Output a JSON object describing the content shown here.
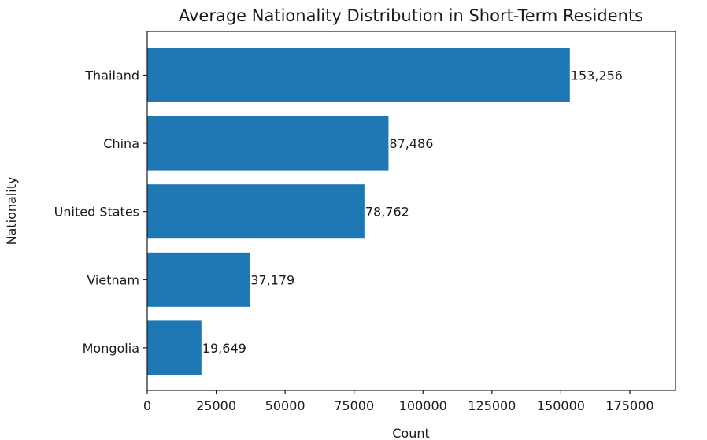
{
  "chart_data": {
    "type": "bar",
    "orientation": "horizontal",
    "title": "Average Nationality Distribution in Short-Term Residents",
    "xlabel": "Count",
    "ylabel": "Nationality",
    "categories": [
      "Thailand",
      "China",
      "United States",
      "Vietnam",
      "Mongolia"
    ],
    "values": [
      153256,
      87486,
      78762,
      37179,
      19649
    ],
    "data_labels": [
      "153,256",
      "87,486",
      "78,762",
      "37,179",
      "19,649"
    ],
    "xlim": [
      0,
      191570
    ],
    "xticks": [
      0,
      25000,
      50000,
      75000,
      100000,
      125000,
      150000,
      175000
    ],
    "xtick_labels": [
      "0",
      "25000",
      "50000",
      "75000",
      "100000",
      "125000",
      "150000",
      "175000"
    ],
    "grid": false,
    "bar_color": "#1f77b4"
  }
}
